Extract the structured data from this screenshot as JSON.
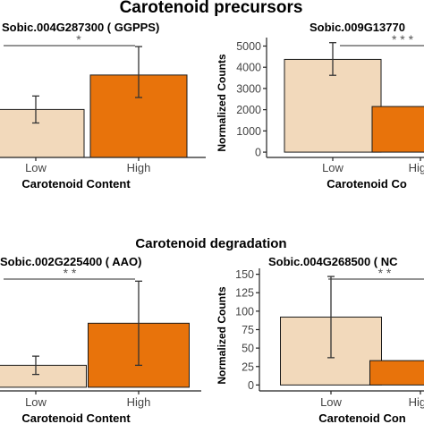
{
  "sections": {
    "top_title": "Carotenoid precursors",
    "bottom_title": "Carotenoid degradation"
  },
  "chart_data": [
    {
      "type": "bar",
      "title": "Sobic.004G287300  ( GGPPS)",
      "xlabel": "Carotenoid Content",
      "ylabel": "",
      "categories": [
        "Low",
        "High"
      ],
      "values": [
        160,
        275
      ],
      "errors": [
        [
          115,
          205
        ],
        [
          200,
          370
        ]
      ],
      "ylim": [
        0,
        400
      ],
      "yticks": [],
      "significance": "*",
      "colors": [
        "#f2d9bb",
        "#e8730b"
      ]
    },
    {
      "type": "bar",
      "title": "Sobic.009G13770",
      "xlabel": "Carotenoid Co",
      "ylabel": "Normalized Counts",
      "categories": [
        "Low",
        "High"
      ],
      "values": [
        4370,
        2150
      ],
      "errors": [
        [
          3620,
          5160
        ],
        [
          2150,
          2150
        ]
      ],
      "ylim": [
        -250,
        5400
      ],
      "yticks": [
        0,
        1000,
        2000,
        3000,
        4000,
        5000
      ],
      "significance": "* * *",
      "colors": [
        "#f2d9bb",
        "#e8730b"
      ]
    },
    {
      "type": "bar",
      "title": "Sobic.002G225400  ( AAO)",
      "xlabel": "Carotenoid Content",
      "ylabel": "",
      "categories": [
        "Low",
        "High"
      ],
      "values": [
        12,
        35
      ],
      "errors": [
        [
          7,
          17
        ],
        [
          12,
          58
        ]
      ],
      "ylim": [
        -2,
        65
      ],
      "yticks": [],
      "significance": "* *",
      "colors": [
        "#f2d9bb",
        "#e8730b"
      ]
    },
    {
      "type": "bar",
      "title": "Sobic.004G268500  ( NC",
      "xlabel": "Carotenoid Con",
      "ylabel": "Normalized Counts",
      "categories": [
        "Low",
        "High"
      ],
      "values": [
        92,
        33
      ],
      "errors": [
        [
          37,
          147
        ],
        [
          33,
          33
        ]
      ],
      "ylim": [
        -8,
        158
      ],
      "yticks": [
        0,
        25,
        50,
        75,
        100,
        125,
        150
      ],
      "significance": "* *",
      "colors": [
        "#f2d9bb",
        "#e8730b"
      ]
    }
  ]
}
